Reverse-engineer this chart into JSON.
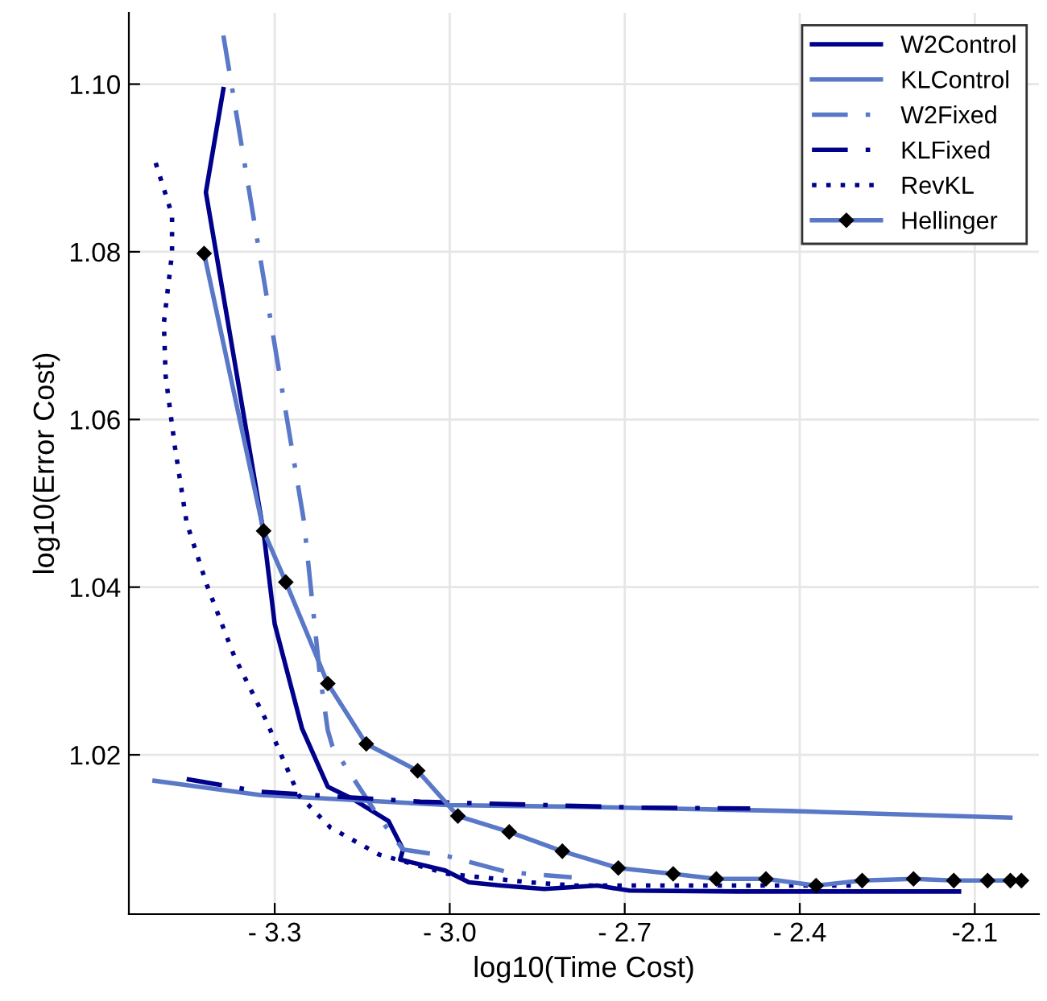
{
  "chart_data": {
    "type": "line",
    "xlabel": "log10(Time Cost)",
    "ylabel": "log10(Error Cost)",
    "xlim": [
      -3.55,
      -1.99
    ],
    "ylim": [
      1.001,
      1.1085
    ],
    "xticks": [
      {
        "value": -3.3,
        "label": "- 3.3"
      },
      {
        "value": -3.0,
        "label": "- 3.0"
      },
      {
        "value": -2.7,
        "label": "- 2.7"
      },
      {
        "value": -2.4,
        "label": "- 2.4"
      },
      {
        "value": -2.1,
        "label": "-2.1"
      }
    ],
    "yticks": [
      {
        "value": 1.02,
        "label": "1.02"
      },
      {
        "value": 1.04,
        "label": "1.04"
      },
      {
        "value": 1.06,
        "label": "1.06"
      },
      {
        "value": 1.08,
        "label": "1.08"
      },
      {
        "value": 1.1,
        "label": "1.10"
      }
    ],
    "grid": true,
    "legend": "top right",
    "series": [
      {
        "name": "W2Control",
        "color": "#00008b",
        "line_style": "solid",
        "marker": "none",
        "x": [
          -3.388,
          -3.418,
          -3.319,
          -3.3,
          -3.253,
          -3.209,
          -3.168,
          -3.105,
          -3.08,
          -3.085,
          -3.008,
          -2.967,
          -2.912,
          -2.838,
          -2.747,
          -2.692,
          -2.507,
          -2.127
        ],
        "values": [
          1.0994,
          1.0871,
          1.0465,
          1.0356,
          1.0231,
          1.0162,
          1.0148,
          1.0121,
          1.0087,
          1.0075,
          1.0062,
          1.0048,
          1.0044,
          1.004,
          1.0044,
          1.0038,
          1.0037,
          1.0037
        ]
      },
      {
        "name": "KLControl",
        "color": "#5a78c8",
        "line_style": "solid",
        "marker": "none",
        "x": [
          -3.506,
          -3.325,
          -3.003,
          -2.783,
          -2.416,
          -2.039
        ],
        "values": [
          1.0169,
          1.0152,
          1.014,
          1.0138,
          1.0133,
          1.0125
        ]
      },
      {
        "name": "W2Fixed",
        "color": "#5a78c8",
        "line_style": "dashdot",
        "marker": "none",
        "x": [
          -3.388,
          -3.25,
          -3.223,
          -3.209,
          -3.201,
          -3.121,
          -3.08,
          -3.003,
          -2.901,
          -2.791
        ],
        "values": [
          1.1058,
          1.0479,
          1.0298,
          1.0229,
          1.021,
          1.0125,
          1.0087,
          1.0079,
          1.006,
          1.0054
        ]
      },
      {
        "name": "KLFixed",
        "color": "#00008b",
        "line_style": "dashdot",
        "marker": "none",
        "x": [
          -3.451,
          -3.325,
          -3.05,
          -2.672,
          -2.485
        ],
        "values": [
          1.0171,
          1.0156,
          1.0144,
          1.0137,
          1.0136
        ]
      },
      {
        "name": "RevKL",
        "color": "#00008b",
        "line_style": "dotted",
        "marker": "none",
        "x": [
          -3.504,
          -3.476,
          -3.476,
          -3.49,
          -3.487,
          -3.471,
          -3.451,
          -3.416,
          -3.369,
          -3.314,
          -3.259,
          -3.204,
          -3.121,
          -3.003,
          -2.865,
          -2.783,
          -2.598,
          -2.306
        ],
        "values": [
          1.0906,
          1.0844,
          1.0798,
          1.0715,
          1.0652,
          1.0567,
          1.0477,
          1.0402,
          1.0317,
          1.024,
          1.0152,
          1.0113,
          1.0081,
          1.0058,
          1.0048,
          1.0044,
          1.0044,
          1.0044
        ]
      },
      {
        "name": "Hellinger",
        "color": "#5a78c8",
        "line_style": "solid",
        "marker": "diamond",
        "x": [
          -3.421,
          -3.319,
          -3.281,
          -3.209,
          -3.143,
          -3.055,
          -2.986,
          -2.898,
          -2.807,
          -2.711,
          -2.617,
          -2.543,
          -2.458,
          -2.372,
          -2.293,
          -2.205,
          -2.136,
          -2.078,
          -2.039,
          -2.02
        ],
        "values": [
          1.0798,
          1.0467,
          1.0406,
          1.0285,
          1.0213,
          1.0181,
          1.0127,
          1.0108,
          1.0085,
          1.0065,
          1.0058,
          1.0052,
          1.0052,
          1.0044,
          1.005,
          1.0052,
          1.005,
          1.005,
          1.005,
          1.005
        ]
      }
    ]
  }
}
